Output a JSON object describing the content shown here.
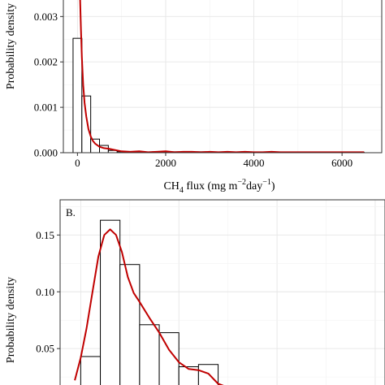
{
  "chart_data": [
    {
      "type": "bar",
      "panel_label": "",
      "xlabel_main": "CH",
      "xlabel_sub": "4",
      "xlabel_rest": " flux (mg m",
      "xlabel_sup1": "−2",
      "xlabel_mid": "day",
      "xlabel_sup2": "−1",
      "xlabel_close": ")",
      "ylabel": "Probability density",
      "xlim": [
        -320,
        6900
      ],
      "ylim": [
        0,
        0.0034
      ],
      "x_ticks": [
        0,
        2000,
        4000,
        6000
      ],
      "x_tick_labels": [
        "0",
        "2000",
        "4000",
        "6000"
      ],
      "y_ticks": [
        0,
        0.001,
        0.002,
        0.003
      ],
      "y_tick_labels": [
        "0.000",
        "0.001",
        "0.002",
        "0.003"
      ],
      "histogram": {
        "bin_edges": [
          -100,
          100,
          300,
          500,
          700,
          900,
          1100,
          1300,
          1500,
          1700,
          1900,
          2100,
          2300,
          2500,
          2700,
          2900,
          3100,
          3300,
          3500,
          3700,
          3900,
          4100,
          4300,
          4500,
          4700,
          4900,
          5100,
          5300,
          5500,
          5700,
          5900,
          6100,
          6300,
          6500
        ],
        "values": [
          0.00252,
          0.00125,
          0.0003,
          0.00016,
          5e-05,
          2e-05,
          2e-05,
          2e-05,
          1e-05,
          2e-05,
          2e-05,
          2e-05,
          1e-05,
          1e-05,
          2e-05,
          1e-05,
          1e-05,
          1e-05,
          1e-05,
          2e-05,
          1e-05,
          1e-05,
          1e-05,
          1e-05,
          1e-05,
          1e-05,
          1e-05,
          1e-05,
          1e-05,
          1e-05,
          1e-05,
          1e-05,
          1e-05
        ]
      },
      "density_curve": {
        "x": [
          60,
          80,
          100,
          130,
          160,
          200,
          250,
          300,
          350,
          400,
          500,
          600,
          700,
          800,
          900,
          1000,
          1200,
          1400,
          1600,
          1800,
          2000,
          2200,
          2400,
          2600,
          2800,
          3000,
          3200,
          3400,
          3600,
          3800,
          4000,
          4200,
          4400,
          4600,
          4800,
          5000,
          5200,
          5400,
          5600,
          5800,
          6000,
          6200,
          6400,
          6500
        ],
        "y": [
          0.0034,
          0.0027,
          0.0021,
          0.0015,
          0.0011,
          0.0008,
          0.00052,
          0.00036,
          0.00026,
          0.0002,
          0.00013,
          0.0001,
          9e-05,
          7e-05,
          5e-05,
          3e-05,
          2e-05,
          3e-05,
          1e-05,
          2e-05,
          3e-05,
          1e-05,
          2e-05,
          2e-05,
          1e-05,
          2e-05,
          1e-05,
          2e-05,
          1e-05,
          2e-05,
          1e-05,
          1e-05,
          2e-05,
          1e-05,
          1e-05,
          1e-05,
          1e-05,
          1e-05,
          1e-05,
          1e-05,
          1e-05,
          1e-05,
          1e-05,
          1e-05
        ]
      },
      "grid": true
    },
    {
      "type": "bar",
      "panel_label": "B.",
      "xlabel": "",
      "ylabel": "Probability density",
      "y_ticks": [
        0.05,
        0.1,
        0.15
      ],
      "y_tick_labels": [
        "0.05",
        "0.10",
        "0.15"
      ],
      "histogram": {
        "bin_edges": [
          0,
          1,
          2,
          3,
          4,
          5,
          6,
          7
        ],
        "values": [
          0.043,
          0.163,
          0.124,
          0.071,
          0.064,
          0.034,
          0.036
        ]
      },
      "density_curve": {
        "x": [
          -0.3,
          0.0,
          0.3,
          0.6,
          0.9,
          1.2,
          1.5,
          1.8,
          2.1,
          2.4,
          2.7,
          3.0,
          3.5,
          4.0,
          4.5,
          5.0,
          5.5,
          6.0,
          6.5,
          7.0,
          7.4
        ],
        "y": [
          0.022,
          0.042,
          0.068,
          0.1,
          0.131,
          0.15,
          0.155,
          0.15,
          0.135,
          0.113,
          0.099,
          0.091,
          0.077,
          0.064,
          0.049,
          0.038,
          0.032,
          0.031,
          0.028,
          0.019,
          0.01
        ]
      },
      "grid": true
    }
  ]
}
